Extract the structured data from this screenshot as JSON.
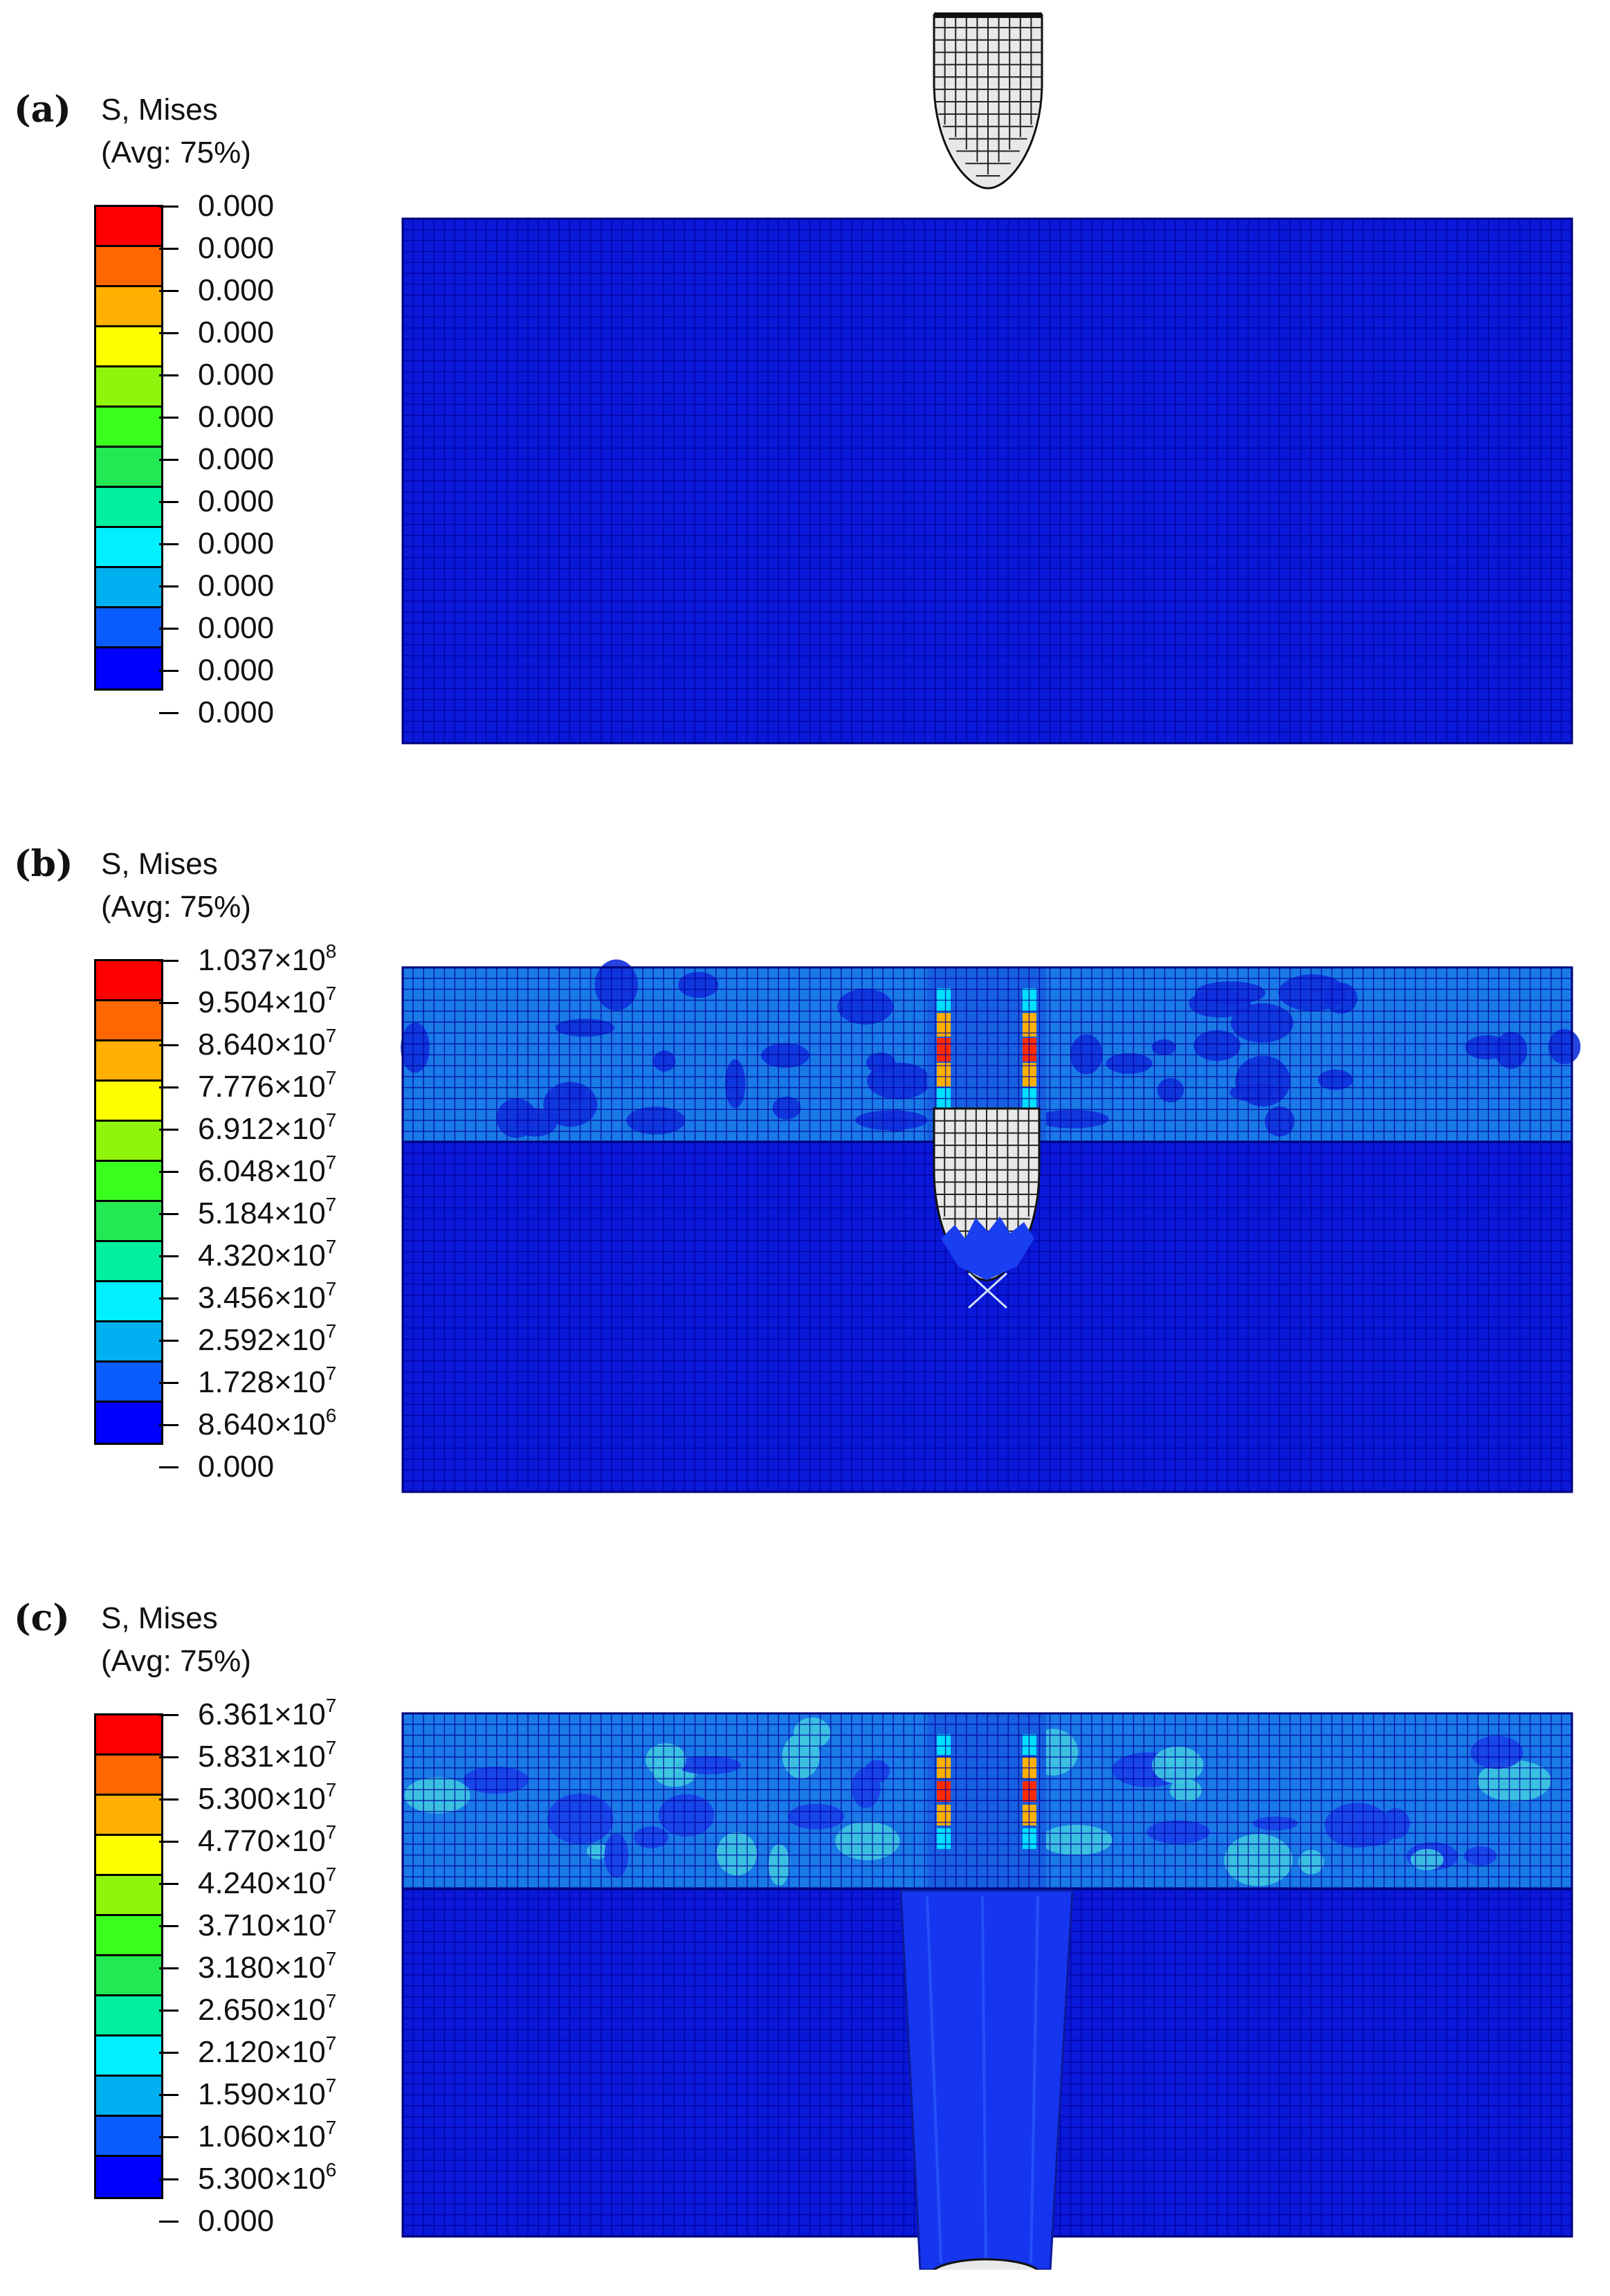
{
  "colors": {
    "contour_scale": [
      "#0000ff",
      "#0b5cff",
      "#00b0f0",
      "#00f0ff",
      "#00f0a0",
      "#22e852",
      "#3aff1e",
      "#90f50d",
      "#ffff00",
      "#ffb000",
      "#ff6800",
      "#ff0000"
    ],
    "mesh_fill": "#0a18d8",
    "damaged_layer": "#1a7ae6",
    "mesh_line": "#00009a",
    "projectile": "#e8e8e8"
  },
  "panels": [
    {
      "letter": "(a)",
      "legend": {
        "title": "S, Mises",
        "subtitle": "(Avg: 75%)",
        "ticks": [
          {
            "mantissa": "0.000",
            "exp": ""
          },
          {
            "mantissa": "0.000",
            "exp": ""
          },
          {
            "mantissa": "0.000",
            "exp": ""
          },
          {
            "mantissa": "0.000",
            "exp": ""
          },
          {
            "mantissa": "0.000",
            "exp": ""
          },
          {
            "mantissa": "0.000",
            "exp": ""
          },
          {
            "mantissa": "0.000",
            "exp": ""
          },
          {
            "mantissa": "0.000",
            "exp": ""
          },
          {
            "mantissa": "0.000",
            "exp": ""
          },
          {
            "mantissa": "0.000",
            "exp": ""
          },
          {
            "mantissa": "0.000",
            "exp": ""
          },
          {
            "mantissa": "0.000",
            "exp": ""
          },
          {
            "mantissa": "0.000",
            "exp": ""
          }
        ]
      }
    },
    {
      "letter": "(b)",
      "legend": {
        "title": "S, Mises",
        "subtitle": "(Avg: 75%)",
        "ticks": [
          {
            "mantissa": "1.037×10",
            "exp": "8"
          },
          {
            "mantissa": "9.504×10",
            "exp": "7"
          },
          {
            "mantissa": "8.640×10",
            "exp": "7"
          },
          {
            "mantissa": "7.776×10",
            "exp": "7"
          },
          {
            "mantissa": "6.912×10",
            "exp": "7"
          },
          {
            "mantissa": "6.048×10",
            "exp": "7"
          },
          {
            "mantissa": "5.184×10",
            "exp": "7"
          },
          {
            "mantissa": "4.320×10",
            "exp": "7"
          },
          {
            "mantissa": "3.456×10",
            "exp": "7"
          },
          {
            "mantissa": "2.592×10",
            "exp": "7"
          },
          {
            "mantissa": "1.728×10",
            "exp": "7"
          },
          {
            "mantissa": "8.640×10",
            "exp": "6"
          },
          {
            "mantissa": "0.000",
            "exp": ""
          }
        ]
      }
    },
    {
      "letter": "(c)",
      "legend": {
        "title": "S, Mises",
        "subtitle": "(Avg: 75%)",
        "ticks": [
          {
            "mantissa": "6.361×10",
            "exp": "7"
          },
          {
            "mantissa": "5.831×10",
            "exp": "7"
          },
          {
            "mantissa": "5.300×10",
            "exp": "7"
          },
          {
            "mantissa": "4.770×10",
            "exp": "7"
          },
          {
            "mantissa": "4.240×10",
            "exp": "7"
          },
          {
            "mantissa": "3.710×10",
            "exp": "7"
          },
          {
            "mantissa": "3.180×10",
            "exp": "7"
          },
          {
            "mantissa": "2.650×10",
            "exp": "7"
          },
          {
            "mantissa": "2.120×10",
            "exp": "7"
          },
          {
            "mantissa": "1.590×10",
            "exp": "7"
          },
          {
            "mantissa": "1.060×10",
            "exp": "7"
          },
          {
            "mantissa": "5.300×10",
            "exp": "6"
          },
          {
            "mantissa": "0.000",
            "exp": ""
          }
        ]
      }
    }
  ]
}
